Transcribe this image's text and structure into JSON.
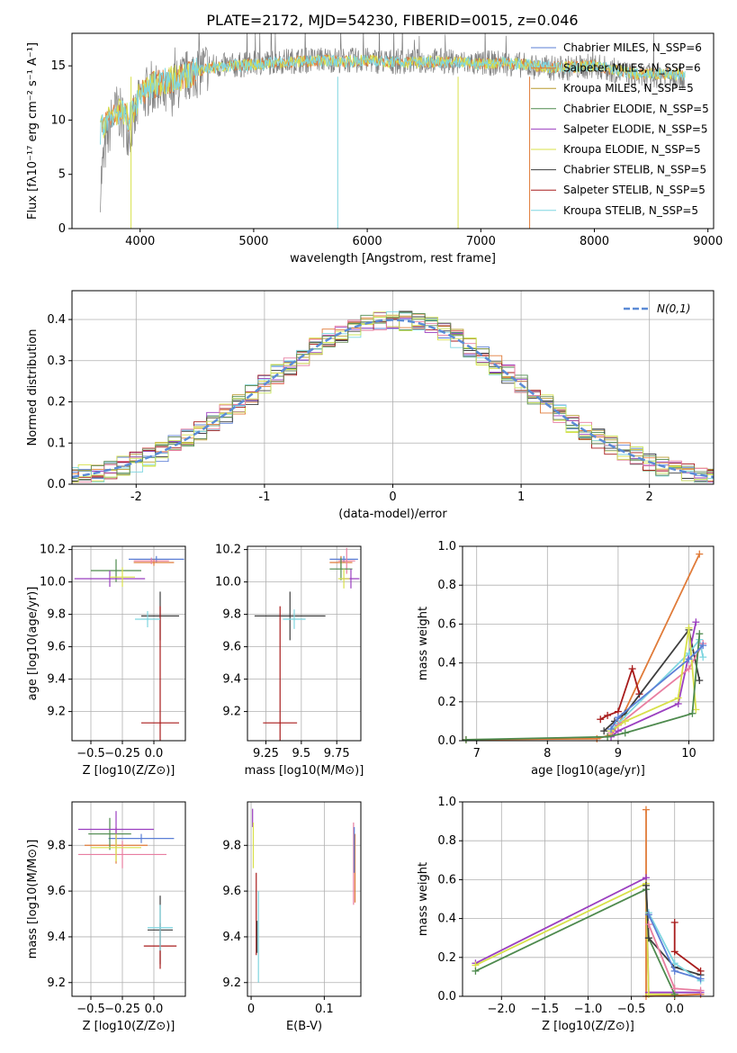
{
  "figure": {
    "title": "PLATE=2172, MJD=54230, FIBERID=0015, z=0.046"
  },
  "colors": {
    "Chabrier MILES": "#5b7fd6",
    "Salpeter MILES": "#e07b39",
    "Kroupa MILES": "#b89a2e",
    "Chabrier ELODIE": "#4e8a4e",
    "Salpeter ELODIE": "#9b3fc0",
    "Kroupa ELODIE": "#d8e04a",
    "Chabrier STELIB": "#3d3d3d",
    "Salpeter STELIB": "#a81c1c",
    "Kroupa STELIB": "#7fd6e0",
    "Pink": "#e87ea0",
    "Lime": "#c9e65c",
    "Olive": "#6b8e5a",
    "data": "#808080",
    "normal": "#5b8bd6"
  },
  "chart_data": [
    {
      "id": "spectrum",
      "type": "line",
      "xlabel": "wavelength [Angstrom, rest frame]",
      "ylabel": "Flux [fλ10⁻¹⁷ erg cm⁻² s⁻¹ A⁻¹]",
      "xlim": [
        3400,
        9050
      ],
      "ylim": [
        0,
        18
      ],
      "xticks": [
        4000,
        5000,
        6000,
        7000,
        8000,
        9000
      ],
      "yticks": [
        0,
        5,
        10,
        15
      ],
      "legend_position": "right",
      "legend": [
        "Chabrier MILES, N_SSP=6",
        "Salpeter MILES, N_SSP=6",
        "Kroupa MILES, N_SSP=5",
        "Chabrier ELODIE, N_SSP=5",
        "Salpeter ELODIE, N_SSP=5",
        "Kroupa ELODIE, N_SSP=5",
        "Chabrier STELIB, N_SSP=5",
        "Salpeter STELIB, N_SSP=5",
        "Kroupa STELIB, N_SSP=5"
      ],
      "series": [
        {
          "name": "data",
          "x": [
            3650,
            3700,
            3750,
            3800,
            3850,
            3900,
            3950,
            4000,
            4100,
            4200,
            4300,
            4400,
            4500,
            4600,
            4800,
            5000,
            5200,
            5400,
            5600,
            5800,
            6000,
            6200,
            6400,
            6600,
            6800,
            7000,
            7200,
            7400,
            7600,
            7800,
            8000,
            8200,
            8400,
            8600,
            8800
          ],
          "y": [
            4,
            8,
            10,
            11,
            10,
            9,
            10,
            12,
            13,
            12,
            13,
            14,
            14.5,
            15,
            15,
            15.2,
            15.4,
            15.5,
            15.6,
            15.5,
            15.5,
            15.4,
            15.4,
            15.5,
            15.3,
            15.2,
            15.3,
            15,
            14.8,
            14.8,
            15,
            14.5,
            14,
            14.2,
            14
          ]
        },
        {
          "name": "model",
          "x": [
            3650,
            3700,
            3750,
            3800,
            3850,
            3900,
            3950,
            4000,
            4100,
            4200,
            4300,
            4400,
            4500,
            4600,
            4800,
            5000,
            5200,
            5400,
            5600,
            5800,
            6000,
            6200,
            6400,
            6600,
            6800,
            7000,
            7200,
            7400,
            7600,
            7800,
            8000,
            8200,
            8400,
            8600,
            8800
          ],
          "y": [
            9,
            10,
            10.5,
            10.8,
            10.5,
            10.2,
            11,
            12.5,
            13.2,
            13.5,
            13.8,
            14,
            14.5,
            14.8,
            15,
            15.1,
            15.3,
            15.4,
            15.5,
            15.4,
            15.5,
            15.4,
            15.3,
            15.4,
            15.3,
            15.2,
            15.3,
            15.1,
            14.9,
            14.9,
            15,
            14.6,
            14.2,
            14.3,
            14.1
          ]
        }
      ]
    },
    {
      "id": "residuals",
      "type": "line",
      "xlabel": "(data-model)/error",
      "ylabel": "Normed distribution",
      "xlim": [
        -2.5,
        2.5
      ],
      "ylim": [
        0,
        0.47
      ],
      "xticks": [
        -2,
        -1,
        0,
        1,
        2
      ],
      "yticks": [
        0.0,
        0.1,
        0.2,
        0.3,
        0.4
      ],
      "legend_position": "top-right",
      "legend": [
        "N(0,1)"
      ]
    },
    {
      "id": "age_vs_Z",
      "type": "scatter",
      "xlabel": "Z [log10(Z/Z⊙)]",
      "ylabel": "age  [log10(age/yr)]",
      "xlim": [
        -0.65,
        0.25
      ],
      "ylim": [
        9.02,
        10.22
      ],
      "xticks": [
        -0.5,
        -0.25,
        0.0
      ],
      "xticklabels": [
        "−0.5",
        "−0.25",
        "0.0"
      ],
      "yticks": [
        9.2,
        9.4,
        9.6,
        9.8,
        10.0,
        10.2
      ],
      "points": [
        {
          "c": "#5b7fd6",
          "x": 0.02,
          "y": 10.14,
          "xerr": 0.22,
          "yerr": 0.02
        },
        {
          "c": "#e07b39",
          "x": 0.0,
          "y": 10.12,
          "xerr": 0.16,
          "yerr": 0.02
        },
        {
          "c": "#e87ea0",
          "x": -0.02,
          "y": 10.13,
          "xerr": 0.14,
          "yerr": 0.02
        },
        {
          "c": "#4e8a4e",
          "x": -0.3,
          "y": 10.07,
          "xerr": 0.2,
          "yerr": 0.07
        },
        {
          "c": "#9b3fc0",
          "x": -0.35,
          "y": 10.02,
          "xerr": 0.28,
          "yerr": 0.05
        },
        {
          "c": "#d8e04a",
          "x": -0.25,
          "y": 10.03,
          "xerr": 0.1,
          "yerr": 0.06
        },
        {
          "c": "#3d3d3d",
          "x": 0.05,
          "y": 9.79,
          "xerr": 0.15,
          "yerr": 0.15
        },
        {
          "c": "#a81c1c",
          "x": 0.05,
          "y": 9.13,
          "xerr": 0.15,
          "yerr": 0.72
        },
        {
          "c": "#7fd6e0",
          "x": -0.05,
          "y": 9.77,
          "xerr": 0.1,
          "yerr": 0.05
        }
      ]
    },
    {
      "id": "age_vs_mass",
      "type": "scatter",
      "xlabel": "mass [log10(M/M⊙)]",
      "ylabel": "",
      "xlim": [
        9.12,
        9.92
      ],
      "ylim": [
        9.02,
        10.22
      ],
      "xticks": [
        9.25,
        9.5,
        9.75
      ],
      "yticks": [
        9.2,
        9.4,
        9.6,
        9.8,
        10.0,
        10.2
      ],
      "points": [
        {
          "c": "#5b7fd6",
          "x": 9.8,
          "y": 10.14,
          "xerr": 0.1,
          "yerr": 0.02
        },
        {
          "c": "#e07b39",
          "x": 9.78,
          "y": 10.12,
          "xerr": 0.08,
          "yerr": 0.04
        },
        {
          "c": "#e87ea0",
          "x": 9.82,
          "y": 10.13,
          "xerr": 0.06,
          "yerr": 0.08
        },
        {
          "c": "#4e8a4e",
          "x": 9.78,
          "y": 10.08,
          "xerr": 0.08,
          "yerr": 0.07
        },
        {
          "c": "#9b3fc0",
          "x": 9.85,
          "y": 10.02,
          "xerr": 0.06,
          "yerr": 0.06
        },
        {
          "c": "#d8e04a",
          "x": 9.8,
          "y": 10.02,
          "xerr": 0.04,
          "yerr": 0.06
        },
        {
          "c": "#3d3d3d",
          "x": 9.42,
          "y": 9.79,
          "xerr": 0.25,
          "yerr": 0.15
        },
        {
          "c": "#a81c1c",
          "x": 9.35,
          "y": 9.13,
          "xerr": 0.12,
          "yerr": 0.72
        },
        {
          "c": "#7fd6e0",
          "x": 9.45,
          "y": 9.77,
          "xerr": 0.08,
          "yerr": 0.06
        }
      ]
    },
    {
      "id": "mass_weight_vs_age",
      "type": "line",
      "xlabel": "age  [log10(age/yr)]",
      "ylabel": "mass weight",
      "xlim": [
        6.8,
        10.35
      ],
      "ylim": [
        0,
        1
      ],
      "xticks": [
        7,
        8,
        9,
        10
      ],
      "yticks": [
        0.0,
        0.2,
        0.4,
        0.6,
        0.8,
        1.0
      ],
      "series": [
        {
          "c": "#e07b39",
          "x": [
            6.85,
            8.7,
            8.9,
            9.0,
            10.15
          ],
          "y": [
            0.005,
            0.01,
            0.03,
            0.08,
            0.96
          ]
        },
        {
          "c": "#a81c1c",
          "x": [
            8.75,
            8.85,
            9.0,
            9.2,
            9.3
          ],
          "y": [
            0.11,
            0.13,
            0.15,
            0.37,
            0.24
          ]
        },
        {
          "c": "#3d3d3d",
          "x": [
            8.8,
            8.95,
            9.1,
            10.0,
            10.15
          ],
          "y": [
            0.05,
            0.1,
            0.14,
            0.57,
            0.31
          ]
        },
        {
          "c": "#9b3fc0",
          "x": [
            8.9,
            9.0,
            9.85,
            10.1
          ],
          "y": [
            0.02,
            0.05,
            0.19,
            0.61
          ]
        },
        {
          "c": "#7fd6e0",
          "x": [
            8.9,
            9.0,
            10.0,
            10.15,
            10.2
          ],
          "y": [
            0.05,
            0.09,
            0.45,
            0.52,
            0.43
          ]
        },
        {
          "c": "#e87ea0",
          "x": [
            8.9,
            9.0,
            10.0,
            10.2
          ],
          "y": [
            0.04,
            0.08,
            0.37,
            0.5
          ]
        },
        {
          "c": "#d8e04a",
          "x": [
            8.9,
            9.1,
            9.85,
            10.0,
            10.1
          ],
          "y": [
            0.05,
            0.1,
            0.22,
            0.58,
            0.16
          ]
        },
        {
          "c": "#4e8a4e",
          "x": [
            6.85,
            8.85,
            9.1,
            10.05,
            10.15
          ],
          "y": [
            0.005,
            0.02,
            0.04,
            0.14,
            0.55
          ]
        },
        {
          "c": "#5b7fd6",
          "x": [
            8.9,
            9.0,
            10.0,
            10.2
          ],
          "y": [
            0.06,
            0.12,
            0.42,
            0.49
          ]
        }
      ]
    },
    {
      "id": "mass_vs_Z",
      "type": "scatter",
      "xlabel": "Z [log10(Z/Z⊙)]",
      "ylabel": "mass [log10(M/M⊙)]",
      "xlim": [
        -0.65,
        0.25
      ],
      "ylim": [
        9.14,
        9.99
      ],
      "xticks": [
        -0.5,
        -0.25,
        0.0
      ],
      "xticklabels": [
        "−0.5",
        "−0.25",
        "0.0"
      ],
      "yticks": [
        9.2,
        9.4,
        9.6,
        9.8
      ],
      "points": [
        {
          "c": "#5b7fd6",
          "x": -0.1,
          "y": 9.83,
          "xerr": 0.26,
          "yerr": 0.02
        },
        {
          "c": "#e07b39",
          "x": -0.3,
          "y": 9.8,
          "xerr": 0.25,
          "yerr": 0.08
        },
        {
          "c": "#e87ea0",
          "x": -0.25,
          "y": 9.76,
          "xerr": 0.35,
          "yerr": 0.06
        },
        {
          "c": "#4e8a4e",
          "x": -0.35,
          "y": 9.85,
          "xerr": 0.17,
          "yerr": 0.07
        },
        {
          "c": "#9b3fc0",
          "x": -0.3,
          "y": 9.87,
          "xerr": 0.3,
          "yerr": 0.08
        },
        {
          "c": "#d8e04a",
          "x": -0.3,
          "y": 9.79,
          "xerr": 0.2,
          "yerr": 0.06
        },
        {
          "c": "#3d3d3d",
          "x": 0.05,
          "y": 9.43,
          "xerr": 0.1,
          "yerr": 0.15
        },
        {
          "c": "#a81c1c",
          "x": 0.05,
          "y": 9.36,
          "xerr": 0.13,
          "yerr": 0.1
        },
        {
          "c": "#7fd6e0",
          "x": 0.05,
          "y": 9.44,
          "xerr": 0.1,
          "yerr": 0.1
        }
      ]
    },
    {
      "id": "mass_vs_ebv",
      "type": "scatter",
      "xlabel": "E(B-V)",
      "ylabel": "",
      "xlim": [
        -0.005,
        0.15
      ],
      "ylim": [
        9.14,
        9.99
      ],
      "xticks": [
        0.0,
        0.1
      ],
      "yticks": [
        9.2,
        9.4,
        9.6,
        9.8
      ],
      "points": [
        {
          "c": "#9b3fc0",
          "x": 0.002,
          "y": 9.92,
          "xerr": 0.0,
          "yerr": 0.04
        },
        {
          "c": "#d8e04a",
          "x": 0.003,
          "y": 9.8,
          "xerr": 0.0,
          "yerr": 0.1
        },
        {
          "c": "#a81c1c",
          "x": 0.007,
          "y": 9.5,
          "xerr": 0.0,
          "yerr": 0.18
        },
        {
          "c": "#3d3d3d",
          "x": 0.008,
          "y": 9.4,
          "xerr": 0.0,
          "yerr": 0.07
        },
        {
          "c": "#7fd6e0",
          "x": 0.01,
          "y": 9.4,
          "xerr": 0.0,
          "yerr": 0.2
        },
        {
          "c": "#e87ea0",
          "x": 0.14,
          "y": 9.72,
          "xerr": 0.0,
          "yerr": 0.18
        },
        {
          "c": "#e07b39",
          "x": 0.142,
          "y": 9.7,
          "xerr": 0.0,
          "yerr": 0.15
        },
        {
          "c": "#5b7fd6",
          "x": 0.141,
          "y": 9.78,
          "xerr": 0.0,
          "yerr": 0.1
        }
      ]
    },
    {
      "id": "mass_weight_vs_Z",
      "type": "line",
      "xlabel": "Z [log10(Z/Z⊙)]",
      "ylabel": "mass weight",
      "xlim": [
        -2.45,
        0.45
      ],
      "ylim": [
        0,
        1
      ],
      "xticks": [
        -2.0,
        -1.5,
        -1.0,
        -0.5,
        0.0
      ],
      "xticklabels": [
        "−2.0",
        "−1.5",
        "−1.0",
        "−0.5",
        "0.0"
      ],
      "yticks": [
        0.0,
        0.2,
        0.4,
        0.6,
        0.8,
        1.0
      ],
      "series": [
        {
          "c": "#e07b39",
          "x": [
            -0.33,
            -0.33,
            0.0,
            0.3
          ],
          "y": [
            0.96,
            0.0,
            0.005,
            0.01
          ]
        },
        {
          "c": "#9b3fc0",
          "x": [
            -2.3,
            -0.33,
            -0.3,
            0.0,
            0.3
          ],
          "y": [
            0.17,
            0.61,
            0.02,
            0.02,
            0.02
          ]
        },
        {
          "c": "#d8e04a",
          "x": [
            -2.3,
            -0.33,
            -0.3,
            0.0
          ],
          "y": [
            0.16,
            0.58,
            0.01,
            0.01
          ]
        },
        {
          "c": "#4e8a4e",
          "x": [
            -2.3,
            -0.33,
            -0.3,
            0.0
          ],
          "y": [
            0.13,
            0.55,
            0.3,
            0.01
          ]
        },
        {
          "c": "#3d3d3d",
          "x": [
            -0.33,
            -0.3,
            0.0,
            0.3
          ],
          "y": [
            0.57,
            0.3,
            0.15,
            0.11
          ]
        },
        {
          "c": "#a81c1c",
          "x": [
            0.0,
            0.0,
            0.3
          ],
          "y": [
            0.38,
            0.23,
            0.13
          ]
        },
        {
          "c": "#7fd6e0",
          "x": [
            -0.3,
            0.0,
            0.3
          ],
          "y": [
            0.43,
            0.17,
            0.08
          ]
        },
        {
          "c": "#e87ea0",
          "x": [
            -0.3,
            0.0,
            0.3
          ],
          "y": [
            0.37,
            0.04,
            0.03
          ]
        },
        {
          "c": "#5b7fd6",
          "x": [
            -0.3,
            0.0,
            0.3
          ],
          "y": [
            0.42,
            0.13,
            0.09
          ]
        }
      ]
    }
  ]
}
